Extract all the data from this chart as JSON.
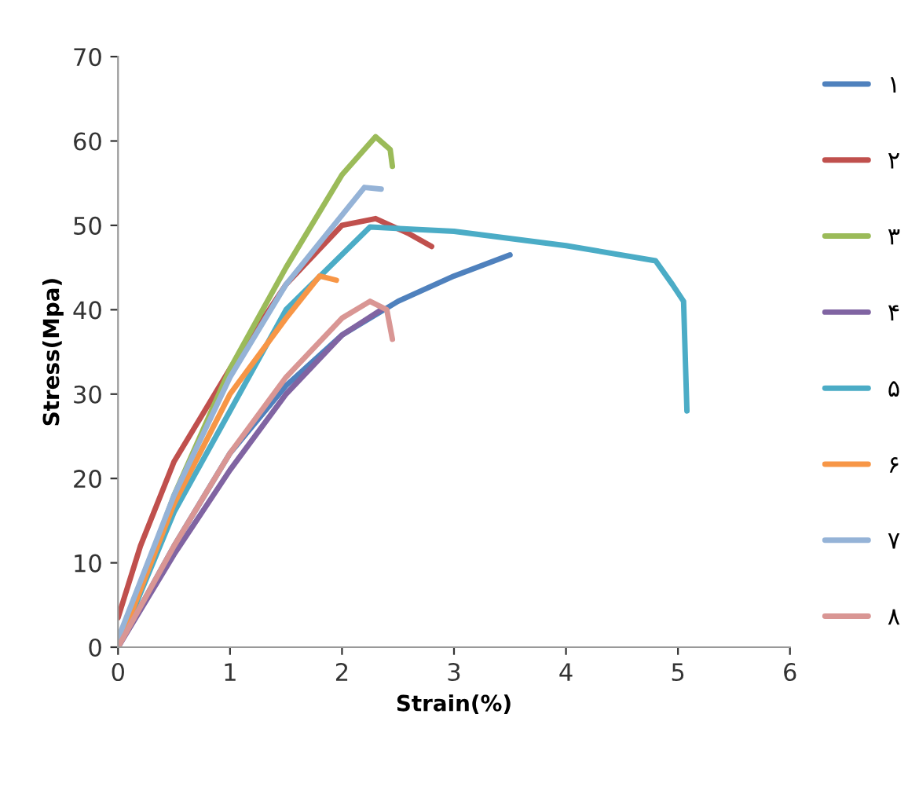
{
  "chart_data": {
    "type": "line",
    "xlabel": "Strain(%)",
    "ylabel": "Stress(Mpa)",
    "xlim": [
      0,
      6
    ],
    "ylim": [
      0,
      70
    ],
    "xticks": [
      0,
      1,
      2,
      3,
      4,
      5,
      6
    ],
    "yticks": [
      0,
      10,
      20,
      30,
      40,
      50,
      60,
      70
    ],
    "grid": false,
    "legend": "right",
    "marker": "none",
    "line_style": "solid",
    "series": [
      {
        "name": "۱",
        "color": "#4f81bd",
        "x": [
          0,
          0.5,
          1,
          1.5,
          2,
          2.5,
          3,
          3.5
        ],
        "values": [
          0,
          12,
          23,
          31,
          37,
          41,
          44,
          46.5
        ]
      },
      {
        "name": "۲",
        "color": "#c0504d",
        "x": [
          0,
          0.2,
          0.5,
          1,
          1.5,
          2,
          2.3,
          2.6,
          2.8
        ],
        "values": [
          3.5,
          12,
          22,
          33,
          43,
          50,
          50.8,
          49,
          47.5
        ]
      },
      {
        "name": "۳",
        "color": "#9bbb59",
        "x": [
          0,
          0.5,
          1,
          1.5,
          2,
          2.3,
          2.43,
          2.45
        ],
        "values": [
          0,
          18,
          33,
          45,
          56,
          60.5,
          59,
          57
        ]
      },
      {
        "name": "۴",
        "color": "#8064a2",
        "x": [
          0,
          0.5,
          1,
          1.5,
          2,
          2.35
        ],
        "values": [
          0,
          11,
          21,
          30,
          37,
          40
        ]
      },
      {
        "name": "۵",
        "color": "#4bacc6",
        "x": [
          0,
          0.5,
          1,
          1.5,
          2.25,
          3,
          4,
          4.8,
          4.95,
          5.05,
          5.08
        ],
        "values": [
          0,
          16,
          28,
          40,
          49.8,
          49.3,
          47.6,
          45.8,
          43,
          41,
          28
        ]
      },
      {
        "name": "۶",
        "color": "#f79646",
        "x": [
          0,
          0.5,
          1,
          1.5,
          1.8,
          1.95
        ],
        "values": [
          0,
          17,
          30,
          39,
          44,
          43.5
        ]
      },
      {
        "name": "۷",
        "color": "#95b3d7",
        "x": [
          0,
          0.5,
          1,
          1.5,
          2.2,
          2.35
        ],
        "values": [
          1,
          18,
          32,
          43,
          54.5,
          54.3
        ]
      },
      {
        "name": "۸",
        "color": "#d99694",
        "x": [
          0,
          0.5,
          1,
          1.5,
          2,
          2.25,
          2.4,
          2.45
        ],
        "values": [
          0,
          12,
          23,
          32,
          39,
          41,
          40,
          36.5
        ]
      }
    ]
  }
}
